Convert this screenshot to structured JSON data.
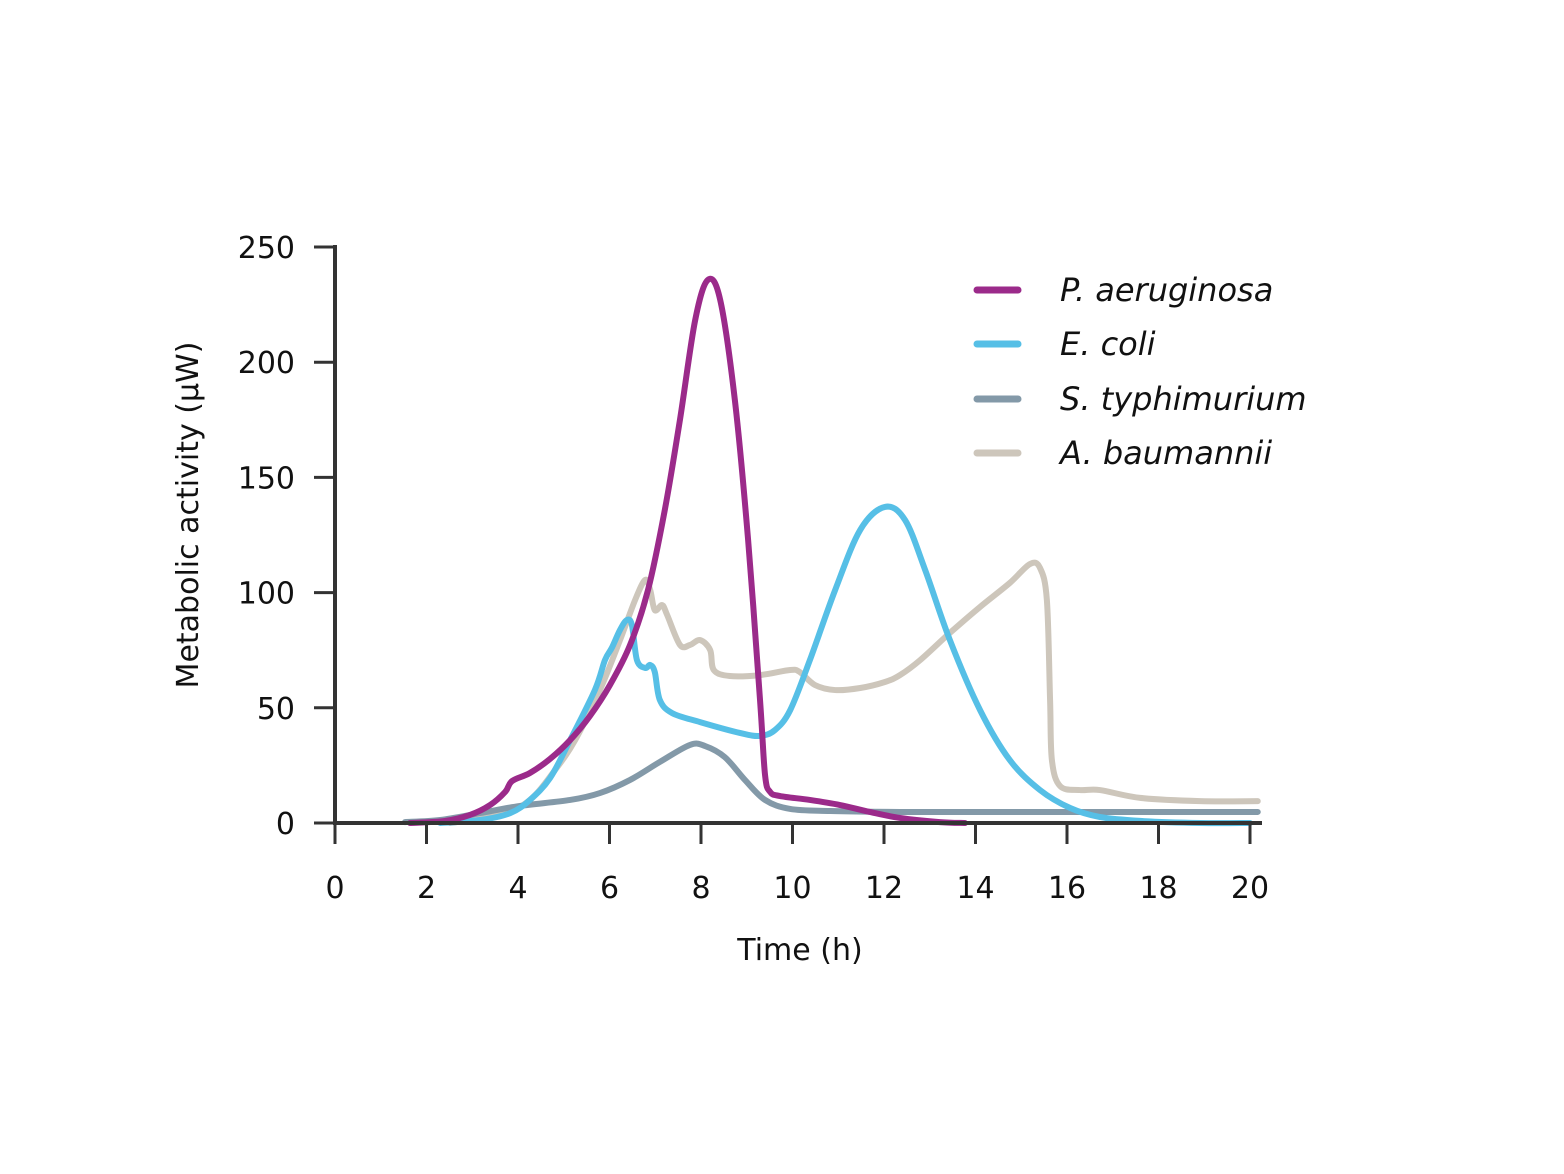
{
  "chart_data": {
    "type": "line",
    "title": "",
    "xlabel": "Time (h)",
    "ylabel": "Metabolic activity (µW)",
    "xlim": [
      0,
      20
    ],
    "ylim": [
      0,
      250
    ],
    "xticks": [
      0,
      2,
      4,
      6,
      8,
      10,
      12,
      14,
      16,
      18,
      20
    ],
    "yticks": [
      0,
      50,
      100,
      150,
      200,
      250
    ],
    "grid": false,
    "legend_position": "top-right",
    "series": [
      {
        "name": "P. aeruginosa",
        "color": "#9b2a8a",
        "x": [
          1.64,
          2.4,
          2.95,
          3.39,
          3.72,
          3.87,
          4.26,
          4.7,
          5.14,
          5.57,
          6.01,
          6.45,
          6.84,
          7.21,
          7.54,
          7.87,
          8.15,
          8.42,
          8.74,
          9.03,
          9.29,
          9.4,
          9.51,
          9.73,
          10.38,
          11.04,
          11.69,
          12.35,
          13.22,
          13.77
        ],
        "y": [
          0,
          0.9,
          3.5,
          7.8,
          13.5,
          18.2,
          21.7,
          27.8,
          36,
          46.4,
          59.9,
          77.3,
          101,
          136,
          175,
          218,
          235.7,
          227,
          183.6,
          122.8,
          53.4,
          20.8,
          13.5,
          11.7,
          10,
          7.8,
          4.8,
          2.2,
          0.4,
          0
        ]
      },
      {
        "name": "E. coli",
        "color": "#56bfe6",
        "x": [
          2.3,
          3.17,
          3.83,
          4.26,
          4.7,
          5.14,
          5.68,
          5.9,
          6.05,
          6.23,
          6.38,
          6.49,
          6.6,
          6.78,
          6.89,
          6.99,
          7.1,
          7.37,
          7.98,
          8.85,
          9.29,
          9.62,
          9.95,
          10.38,
          10.93,
          11.48,
          12.02,
          12.46,
          12.9,
          13.44,
          14.1,
          14.75,
          15.41,
          16.07,
          16.72,
          17.6,
          18.91,
          20.0
        ],
        "y": [
          0,
          1.3,
          4.3,
          10,
          19.5,
          36,
          57.7,
          70.7,
          76,
          83.8,
          88.1,
          85.9,
          70.7,
          67.3,
          68.6,
          65.5,
          53.4,
          47.7,
          43.8,
          39.1,
          37.8,
          40.4,
          49,
          70.7,
          101,
          127.2,
          137.2,
          131.5,
          109.8,
          79.4,
          49,
          27.3,
          14.3,
          6.5,
          2.6,
          0.9,
          0,
          0
        ]
      },
      {
        "name": "S. typhimurium",
        "color": "#8399a8",
        "x": [
          1.53,
          2.3,
          3.17,
          4.04,
          5.14,
          5.79,
          6.45,
          7.1,
          7.76,
          8.09,
          8.52,
          8.96,
          9.4,
          9.95,
          10.82,
          12.35,
          14.54,
          16.72,
          20.17
        ],
        "y": [
          0.4,
          1.3,
          4.3,
          7.4,
          10,
          13,
          18.7,
          26.5,
          33.9,
          33.4,
          28.6,
          18.7,
          10,
          6.1,
          5.2,
          4.8,
          4.8,
          4.8,
          4.8
        ]
      },
      {
        "name": "A. baumannii",
        "color": "#cdc6bb",
        "x": [
          2.51,
          3.61,
          4.26,
          4.81,
          5.25,
          5.79,
          6.23,
          6.56,
          6.78,
          6.89,
          6.99,
          7.15,
          7.26,
          7.54,
          7.76,
          7.98,
          8.2,
          8.28,
          8.63,
          9.29,
          9.95,
          10.16,
          10.49,
          10.93,
          11.48,
          12.02,
          12.35,
          12.79,
          13.44,
          14.1,
          14.75,
          15.19,
          15.41,
          15.56,
          15.63,
          15.67,
          15.85,
          16.28,
          16.72,
          17.6,
          18.91,
          20.17
        ],
        "y": [
          0,
          3.5,
          10,
          23,
          36,
          57.7,
          79.4,
          96.8,
          105.5,
          101.1,
          92.4,
          94.6,
          90.3,
          77.3,
          77.3,
          79.4,
          75.1,
          66.4,
          63.8,
          64.2,
          66.4,
          65.5,
          59.9,
          57.7,
          58.6,
          61.2,
          64.2,
          70.7,
          82.5,
          93.8,
          104.2,
          112.4,
          110.7,
          96.8,
          53.4,
          27.3,
          16,
          14.3,
          14.3,
          10.9,
          9.5,
          9.5
        ]
      }
    ]
  }
}
